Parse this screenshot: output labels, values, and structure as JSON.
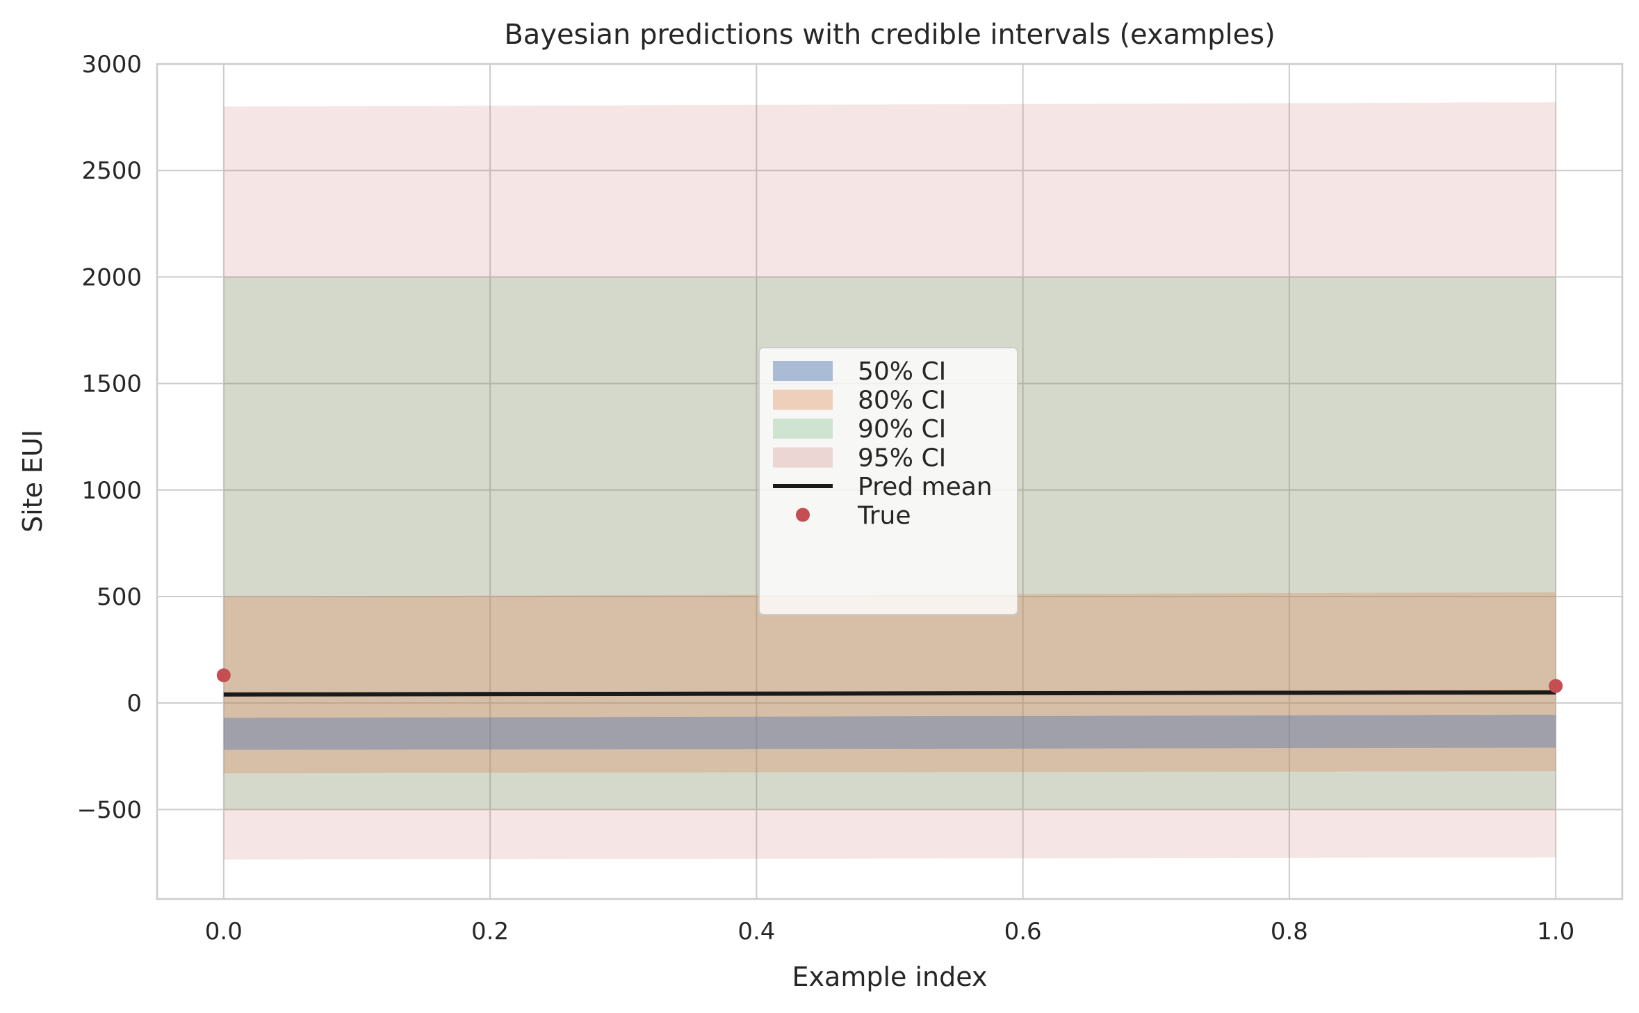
{
  "chart_data": {
    "type": "line",
    "title": "Bayesian predictions with credible intervals (examples)",
    "xlabel": "Example index",
    "ylabel": "Site EUI",
    "xlim": [
      -0.05,
      1.05
    ],
    "ylim": [
      -920,
      3000
    ],
    "x": [
      0,
      1
    ],
    "xticks": [
      0.0,
      0.2,
      0.4,
      0.6,
      0.8,
      1.0
    ],
    "xtick_labels": [
      "0.0",
      "0.2",
      "0.4",
      "0.6",
      "0.8",
      "1.0"
    ],
    "yticks": [
      -500,
      0,
      500,
      1000,
      1500,
      2000,
      2500,
      3000
    ],
    "ytick_labels": [
      "−500",
      "0",
      "500",
      "1000",
      "1500",
      "2000",
      "2500",
      "3000"
    ],
    "grid": true,
    "legend_position": "center",
    "bands": [
      {
        "name": "50% CI",
        "color": "#4c72b0",
        "opacity": 0.4,
        "lower": [
          -220,
          -210
        ],
        "upper": [
          -70,
          -55
        ]
      },
      {
        "name": "80% CI",
        "color": "#dd8452",
        "opacity": 0.3,
        "lower": [
          -330,
          -320
        ],
        "upper": [
          500,
          520
        ]
      },
      {
        "name": "90% CI",
        "color": "#55a868",
        "opacity": 0.2,
        "lower": [
          -500,
          -500
        ],
        "upper": [
          2000,
          2000
        ]
      },
      {
        "name": "95% CI",
        "color": "#c44e52",
        "opacity": 0.15,
        "lower": [
          -735,
          -725
        ],
        "upper": [
          2800,
          2820
        ]
      }
    ],
    "series": [
      {
        "name": "Pred mean",
        "type": "line",
        "color": "#1a1a1a",
        "values": [
          40,
          50
        ]
      },
      {
        "name": "True",
        "type": "scatter",
        "color": "#c44e52",
        "values": [
          130,
          80
        ]
      }
    ]
  }
}
